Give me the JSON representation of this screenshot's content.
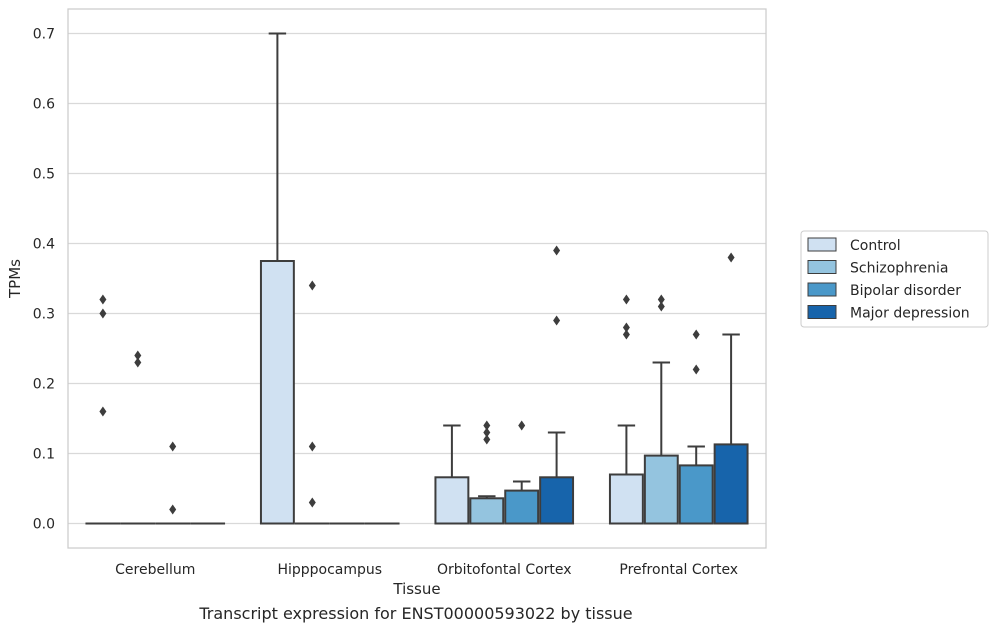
{
  "chart_data": {
    "type": "box",
    "xlabel": "Tissue",
    "ylabel": "TPMs",
    "ylim": [
      -0.035,
      0.735
    ],
    "yticks": [
      0.0,
      0.1,
      0.2,
      0.3,
      0.4,
      0.5,
      0.6,
      0.7
    ],
    "ytick_labels": [
      "0.0",
      "0.1",
      "0.2",
      "0.3",
      "0.4",
      "0.5",
      "0.6",
      "0.7"
    ],
    "grid": "horizontal",
    "legend_position": "right",
    "categories": [
      "Cerebellum",
      "Hipppocampus",
      "Orbitofontal Cortex",
      "Prefrontal Cortex"
    ],
    "series": [
      {
        "name": "Control",
        "color": "#d0e1f2",
        "boxes": [
          {
            "q1": 0.0,
            "median": 0.0,
            "q3": 0.0,
            "whisker_low": 0.0,
            "whisker_high": 0.0,
            "outliers": [
              0.32,
              0.3,
              0.16
            ]
          },
          {
            "q1": 0.0,
            "median": 0.0,
            "q3": 0.375,
            "whisker_low": 0.0,
            "whisker_high": 0.7,
            "outliers": []
          },
          {
            "q1": 0.0,
            "median": 0.0,
            "q3": 0.066,
            "whisker_low": 0.0,
            "whisker_high": 0.14,
            "outliers": []
          },
          {
            "q1": 0.0,
            "median": 0.0,
            "q3": 0.07,
            "whisker_low": 0.0,
            "whisker_high": 0.14,
            "outliers": [
              0.32,
              0.28,
              0.27
            ]
          }
        ]
      },
      {
        "name": "Schizophrenia",
        "color": "#94c4df",
        "boxes": [
          {
            "q1": 0.0,
            "median": 0.0,
            "q3": 0.0,
            "whisker_low": 0.0,
            "whisker_high": 0.0,
            "outliers": [
              0.24,
              0.23
            ]
          },
          {
            "q1": 0.0,
            "median": 0.0,
            "q3": 0.0,
            "whisker_low": 0.0,
            "whisker_high": 0.0,
            "outliers": [
              0.34,
              0.11,
              0.03
            ]
          },
          {
            "q1": 0.0,
            "median": 0.0,
            "q3": 0.036,
            "whisker_low": 0.0,
            "whisker_high": 0.039,
            "outliers": [
              0.14,
              0.13,
              0.12
            ]
          },
          {
            "q1": 0.0,
            "median": 0.0,
            "q3": 0.097,
            "whisker_low": 0.0,
            "whisker_high": 0.23,
            "outliers": [
              0.32,
              0.31
            ]
          }
        ]
      },
      {
        "name": "Bipolar disorder",
        "color": "#4a98c9",
        "boxes": [
          {
            "q1": 0.0,
            "median": 0.0,
            "q3": 0.0,
            "whisker_low": 0.0,
            "whisker_high": 0.0,
            "outliers": [
              0.11,
              0.02
            ]
          },
          {
            "q1": 0.0,
            "median": 0.0,
            "q3": 0.0,
            "whisker_low": 0.0,
            "whisker_high": 0.0,
            "outliers": []
          },
          {
            "q1": 0.0,
            "median": 0.0,
            "q3": 0.047,
            "whisker_low": 0.0,
            "whisker_high": 0.06,
            "outliers": [
              0.14
            ]
          },
          {
            "q1": 0.0,
            "median": 0.0,
            "q3": 0.083,
            "whisker_low": 0.0,
            "whisker_high": 0.11,
            "outliers": [
              0.27,
              0.22
            ]
          }
        ]
      },
      {
        "name": "Major depression",
        "color": "#1764ab",
        "boxes": [
          {
            "q1": 0.0,
            "median": 0.0,
            "q3": 0.0,
            "whisker_low": 0.0,
            "whisker_high": 0.0,
            "outliers": []
          },
          {
            "q1": 0.0,
            "median": 0.0,
            "q3": 0.0,
            "whisker_low": 0.0,
            "whisker_high": 0.0,
            "outliers": []
          },
          {
            "q1": 0.0,
            "median": 0.0,
            "q3": 0.066,
            "whisker_low": 0.0,
            "whisker_high": 0.13,
            "outliers": [
              0.39,
              0.29
            ]
          },
          {
            "q1": 0.0,
            "median": 0.0,
            "q3": 0.113,
            "whisker_low": 0.0,
            "whisker_high": 0.27,
            "outliers": [
              0.38
            ]
          }
        ]
      }
    ]
  },
  "caption": "Transcript expression for ENST00000593022 by tissue"
}
